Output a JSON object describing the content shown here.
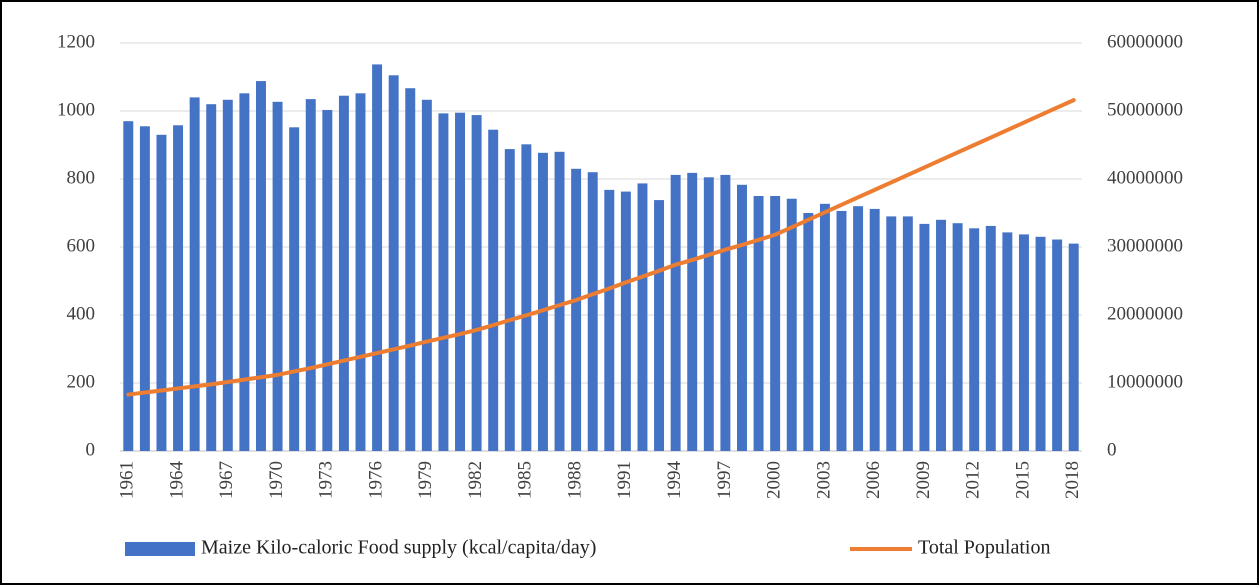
{
  "chart_data": {
    "type": "bar-line",
    "categories": [
      "1961",
      null,
      null,
      "1964",
      null,
      null,
      "1967",
      null,
      null,
      "1970",
      null,
      null,
      "1973",
      null,
      null,
      "1976",
      null,
      null,
      "1979",
      null,
      null,
      "1982",
      null,
      null,
      "1985",
      null,
      null,
      "1988",
      null,
      null,
      "1991",
      null,
      null,
      "1994",
      null,
      null,
      "1997",
      null,
      null,
      "2000",
      null,
      null,
      "2003",
      null,
      null,
      "2006",
      null,
      null,
      "2009",
      null,
      null,
      "2012",
      null,
      null,
      "2015",
      null,
      null,
      "2018"
    ],
    "series": [
      {
        "name": "Maize Kilo-caloric Food supply (kcal/capita/day)",
        "type": "bar",
        "color": "#4472c4",
        "values": [
          970,
          955,
          930,
          958,
          1040,
          1020,
          1033,
          1052,
          1088,
          1027,
          952,
          1035,
          1003,
          1045,
          1052,
          1137,
          1105,
          1067,
          1033,
          993,
          995,
          988,
          945,
          888,
          902,
          877,
          880,
          830,
          820,
          768,
          763,
          787,
          738,
          812,
          818,
          805,
          812,
          783,
          750,
          750,
          742,
          700,
          727,
          706,
          720,
          712,
          690,
          690,
          668,
          680,
          670,
          655,
          662,
          643,
          637,
          630,
          622,
          610
        ]
      },
      {
        "name": "Total Population",
        "type": "line",
        "color": "#ed7d31",
        "axis": "y2",
        "values": [
          8300000,
          8600000,
          8900000,
          9200000,
          9500000,
          9800000,
          10150000,
          10500000,
          10850000,
          11200000,
          11700000,
          12200000,
          12750000,
          13300000,
          13850000,
          14400000,
          14950000,
          15500000,
          16100000,
          16650000,
          17200000,
          17800000,
          18500000,
          19250000,
          19950000,
          20700000,
          21450000,
          22200000,
          23050000,
          23900000,
          24800000,
          25650000,
          26500000,
          27400000,
          28100000,
          28850000,
          29600000,
          30300000,
          31050000,
          31800000,
          32900000,
          34000000,
          35100000,
          36200000,
          37300000,
          38400000,
          39500000,
          40600000,
          41700000,
          42800000,
          43900000,
          45000000,
          46100000,
          47200000,
          48300000,
          49400000,
          50500000,
          51600000
        ]
      }
    ],
    "ylim": [
      0,
      1200
    ],
    "yticks": [
      0,
      200,
      400,
      600,
      800,
      1000,
      1200
    ],
    "y2lim": [
      0,
      60000000
    ],
    "y2ticks": [
      0,
      10000000,
      20000000,
      30000000,
      40000000,
      50000000,
      60000000
    ],
    "grid": true,
    "legend": "bottom"
  }
}
